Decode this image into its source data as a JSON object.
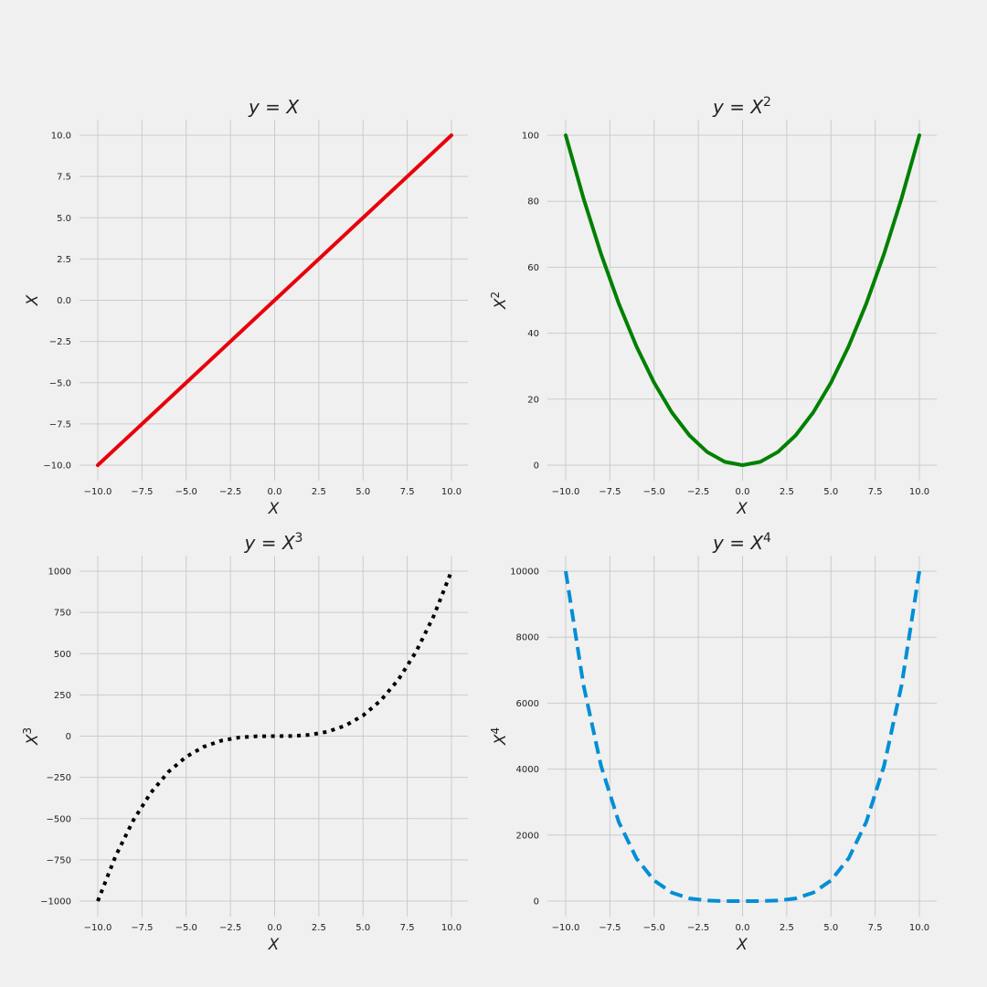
{
  "chart_data": [
    {
      "type": "line",
      "title": "y = X",
      "title_parts": {
        "lhs": "y",
        "eq": " = ",
        "base": "X",
        "exp": ""
      },
      "xlabel": "X",
      "ylabel": "X",
      "ylabel_parts": {
        "base": "X",
        "exp": ""
      },
      "xlim": [
        -10.0,
        10.0
      ],
      "ylim": [
        -10.0,
        10.0
      ],
      "xticks": [
        -10.0,
        -7.5,
        -5.0,
        -2.5,
        0.0,
        2.5,
        5.0,
        7.5,
        10.0
      ],
      "xtick_labels": [
        "−10.0",
        "−7.5",
        "−5.0",
        "−2.5",
        "0.0",
        "2.5",
        "5.0",
        "7.5",
        "10.0"
      ],
      "yticks": [
        -10.0,
        -7.5,
        -5.0,
        -2.5,
        0.0,
        2.5,
        5.0,
        7.5,
        10.0
      ],
      "ytick_labels": [
        "−10.0",
        "−7.5",
        "−5.0",
        "−2.5",
        "0.0",
        "2.5",
        "5.0",
        "7.5",
        "10.0"
      ],
      "grid": true,
      "series": [
        {
          "color": "#e8000b",
          "style": "solid",
          "x": [
            -10,
            -9,
            -8,
            -7,
            -6,
            -5,
            -4,
            -3,
            -2,
            -1,
            0,
            1,
            2,
            3,
            4,
            5,
            6,
            7,
            8,
            9,
            10
          ],
          "y": [
            -10,
            -9,
            -8,
            -7,
            -6,
            -5,
            -4,
            -3,
            -2,
            -1,
            0,
            1,
            2,
            3,
            4,
            5,
            6,
            7,
            8,
            9,
            10
          ]
        }
      ]
    },
    {
      "type": "line",
      "title": "y = X^2",
      "title_parts": {
        "lhs": "y",
        "eq": " = ",
        "base": "X",
        "exp": "2"
      },
      "xlabel": "X",
      "ylabel": "X^2",
      "ylabel_parts": {
        "base": "X",
        "exp": "2"
      },
      "xlim": [
        -10.0,
        10.0
      ],
      "ylim": [
        0,
        100
      ],
      "xticks": [
        -10.0,
        -7.5,
        -5.0,
        -2.5,
        0.0,
        2.5,
        5.0,
        7.5,
        10.0
      ],
      "xtick_labels": [
        "−10.0",
        "−7.5",
        "−5.0",
        "−2.5",
        "0.0",
        "2.5",
        "5.0",
        "7.5",
        "10.0"
      ],
      "yticks": [
        0,
        20,
        40,
        60,
        80,
        100
      ],
      "ytick_labels": [
        "0",
        "20",
        "40",
        "60",
        "80",
        "100"
      ],
      "grid": true,
      "series": [
        {
          "color": "#008000",
          "style": "solid",
          "x": [
            -10,
            -9,
            -8,
            -7,
            -6,
            -5,
            -4,
            -3,
            -2,
            -1,
            0,
            1,
            2,
            3,
            4,
            5,
            6,
            7,
            8,
            9,
            10
          ],
          "y": [
            100,
            81,
            64,
            49,
            36,
            25,
            16,
            9,
            4,
            1,
            0,
            1,
            4,
            9,
            16,
            25,
            36,
            49,
            64,
            81,
            100
          ]
        }
      ]
    },
    {
      "type": "line",
      "title": "y = X^3",
      "title_parts": {
        "lhs": "y",
        "eq": " = ",
        "base": "X",
        "exp": "3"
      },
      "xlabel": "X",
      "ylabel": "X^3",
      "ylabel_parts": {
        "base": "X",
        "exp": "3"
      },
      "xlim": [
        -10.0,
        10.0
      ],
      "ylim": [
        -1000,
        1000
      ],
      "xticks": [
        -10.0,
        -7.5,
        -5.0,
        -2.5,
        0.0,
        2.5,
        5.0,
        7.5,
        10.0
      ],
      "xtick_labels": [
        "−10.0",
        "−7.5",
        "−5.0",
        "−2.5",
        "0.0",
        "2.5",
        "5.0",
        "7.5",
        "10.0"
      ],
      "yticks": [
        -1000,
        -750,
        -500,
        -250,
        0,
        250,
        500,
        750,
        1000
      ],
      "ytick_labels": [
        "−1000",
        "−750",
        "−500",
        "−250",
        "0",
        "250",
        "500",
        "750",
        "1000"
      ],
      "grid": true,
      "series": [
        {
          "color": "#000000",
          "style": "dotted",
          "x": [
            -10,
            -9,
            -8,
            -7,
            -6,
            -5,
            -4,
            -3,
            -2,
            -1,
            0,
            1,
            2,
            3,
            4,
            5,
            6,
            7,
            8,
            9,
            10
          ],
          "y": [
            -1000,
            -729,
            -512,
            -343,
            -216,
            -125,
            -64,
            -27,
            -8,
            -1,
            0,
            1,
            8,
            27,
            64,
            125,
            216,
            343,
            512,
            729,
            1000
          ]
        }
      ]
    },
    {
      "type": "line",
      "title": "y = X^4",
      "title_parts": {
        "lhs": "y",
        "eq": " = ",
        "base": "X",
        "exp": "4"
      },
      "xlabel": "X",
      "ylabel": "X^4",
      "ylabel_parts": {
        "base": "X",
        "exp": "4"
      },
      "xlim": [
        -10.0,
        10.0
      ],
      "ylim": [
        0,
        10000
      ],
      "xticks": [
        -10.0,
        -7.5,
        -5.0,
        -2.5,
        0.0,
        2.5,
        5.0,
        7.5,
        10.0
      ],
      "xtick_labels": [
        "−10.0",
        "−7.5",
        "−5.0",
        "−2.5",
        "0.0",
        "2.5",
        "5.0",
        "7.5",
        "10.0"
      ],
      "yticks": [
        0,
        2000,
        4000,
        6000,
        8000,
        10000
      ],
      "ytick_labels": [
        "0",
        "2000",
        "4000",
        "6000",
        "8000",
        "10000"
      ],
      "grid": true,
      "series": [
        {
          "color": "#008fd5",
          "style": "dashed",
          "x": [
            -10,
            -9,
            -8,
            -7,
            -6,
            -5,
            -4,
            -3,
            -2,
            -1,
            0,
            1,
            2,
            3,
            4,
            5,
            6,
            7,
            8,
            9,
            10
          ],
          "y": [
            10000,
            6561,
            4096,
            2401,
            1296,
            625,
            256,
            81,
            16,
            1,
            0,
            1,
            16,
            81,
            256,
            625,
            1296,
            2401,
            4096,
            6561,
            10000
          ]
        }
      ]
    }
  ]
}
